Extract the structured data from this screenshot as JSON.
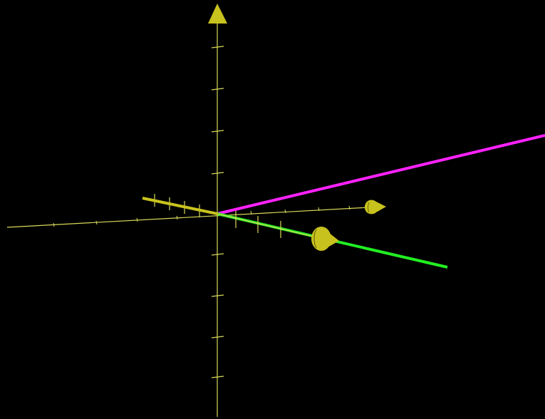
{
  "scene": {
    "background_color": "#000000",
    "axes_color": "#d9d95a",
    "arrowhead_color": "#c8c21e",
    "axes": [
      {
        "id": "vertical-axis",
        "has_arrowhead": true
      },
      {
        "id": "horizontal-axis",
        "has_arrowhead": true
      },
      {
        "id": "depth-axis",
        "has_arrowhead": true
      }
    ],
    "vectors": [
      {
        "id": "magenta-vector",
        "color": "#ff22ff"
      },
      {
        "id": "green-vector",
        "color": "#22ee22"
      },
      {
        "id": "yellow-vector",
        "color": "#c8c21e"
      }
    ]
  }
}
